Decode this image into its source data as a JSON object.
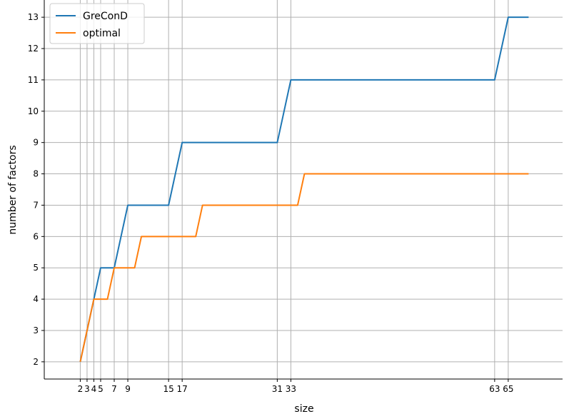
{
  "chart_data": {
    "type": "line",
    "xlabel": "size",
    "ylabel": "number of factors",
    "xlim": [
      -3.3,
      73
    ],
    "ylim": [
      1.45,
      13.55
    ],
    "grid": true,
    "legend_placement": "top-left",
    "xticks": [
      2,
      3,
      4,
      5,
      7,
      9,
      15,
      17,
      31,
      33,
      63,
      65
    ],
    "xtick_labels": [
      "2",
      "3",
      "4",
      "5",
      "7",
      "9",
      "15",
      "17",
      "31",
      "33",
      "63",
      "65"
    ],
    "yticks": [
      2,
      3,
      4,
      5,
      6,
      7,
      8,
      9,
      10,
      11,
      12,
      13
    ],
    "ytick_labels": [
      "2",
      "3",
      "4",
      "5",
      "6",
      "7",
      "8",
      "9",
      "10",
      "11",
      "12",
      "13"
    ],
    "x": [
      2,
      3,
      4,
      5,
      6,
      7,
      8,
      9,
      10,
      11,
      12,
      13,
      14,
      15,
      16,
      17,
      18,
      19,
      20,
      21,
      22,
      23,
      24,
      25,
      26,
      27,
      28,
      29,
      30,
      31,
      32,
      33,
      34,
      35,
      36,
      37,
      38,
      39,
      40,
      41,
      42,
      43,
      44,
      45,
      46,
      47,
      48,
      49,
      50,
      51,
      52,
      53,
      54,
      55,
      56,
      57,
      58,
      59,
      60,
      61,
      62,
      63,
      64,
      65,
      66,
      67,
      68
    ],
    "series": [
      {
        "name": "GreConD",
        "color": "#1f77b4",
        "values": [
          2,
          3,
          4,
          5,
          5,
          5,
          6,
          7,
          7,
          7,
          7,
          7,
          7,
          7,
          8,
          9,
          9,
          9,
          9,
          9,
          9,
          9,
          9,
          9,
          9,
          9,
          9,
          9,
          9,
          9,
          10,
          11,
          11,
          11,
          11,
          11,
          11,
          11,
          11,
          11,
          11,
          11,
          11,
          11,
          11,
          11,
          11,
          11,
          11,
          11,
          11,
          11,
          11,
          11,
          11,
          11,
          11,
          11,
          11,
          11,
          11,
          11,
          12,
          13,
          13,
          13,
          13
        ]
      },
      {
        "name": "optimal",
        "color": "#ff7f0e",
        "values": [
          2,
          3,
          4,
          4,
          4,
          5,
          5,
          5,
          5,
          6,
          6,
          6,
          6,
          6,
          6,
          6,
          6,
          6,
          7,
          7,
          7,
          7,
          7,
          7,
          7,
          7,
          7,
          7,
          7,
          7,
          7,
          7,
          7,
          8,
          8,
          8,
          8,
          8,
          8,
          8,
          8,
          8,
          8,
          8,
          8,
          8,
          8,
          8,
          8,
          8,
          8,
          8,
          8,
          8,
          8,
          8,
          8,
          8,
          8,
          8,
          8,
          8,
          8,
          8,
          8,
          8,
          8
        ]
      }
    ]
  }
}
